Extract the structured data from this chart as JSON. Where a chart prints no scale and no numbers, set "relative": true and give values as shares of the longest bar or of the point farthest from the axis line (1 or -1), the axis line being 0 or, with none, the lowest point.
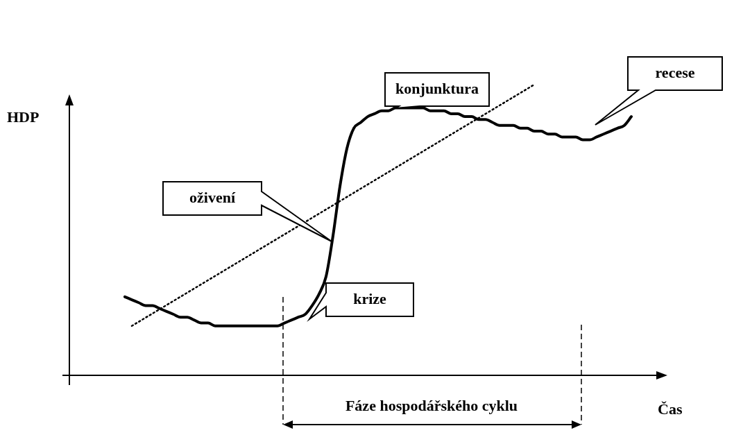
{
  "chart_data": {
    "type": "line",
    "relative": true,
    "ylabel": "HDP",
    "xlabel": "Čas",
    "marker": "none",
    "categories": [
      null,
      null,
      null,
      null,
      null,
      null,
      null,
      null,
      null,
      null,
      null,
      null,
      null,
      null,
      null,
      null,
      null,
      null,
      null,
      null,
      null,
      null,
      null,
      null,
      null,
      null,
      null,
      null,
      null,
      null,
      null,
      null,
      null,
      null,
      null,
      null,
      null,
      null,
      null,
      null,
      null,
      null,
      null,
      null,
      null,
      null,
      null,
      null,
      null,
      null,
      null,
      null,
      null,
      null,
      null,
      null,
      null,
      null,
      null,
      null,
      null,
      null,
      null,
      null,
      null,
      null,
      null,
      null,
      null,
      null,
      null,
      null,
      null,
      null,
      null,
      null,
      null,
      null,
      null,
      null,
      null,
      null,
      null,
      null,
      null,
      null,
      null
    ],
    "series": [
      {
        "color": "#000000",
        "line_style": "solid",
        "values": [
          null,
          null,
          null,
          null,
          null,
          null,
          null,
          null,
          0.27,
          0.26,
          0.25,
          0.24,
          0.24,
          0.23,
          0.22,
          0.21,
          0.2,
          0.2,
          0.19,
          0.18,
          0.18,
          0.17,
          0.17,
          0.17,
          0.17,
          0.17,
          0.17,
          0.17,
          0.17,
          0.17,
          0.17,
          0.18,
          0.19,
          0.2,
          0.21,
          0.24,
          0.28,
          0.34,
          0.48,
          0.65,
          0.78,
          0.85,
          0.87,
          0.89,
          0.9,
          0.91,
          0.91,
          0.92,
          0.92,
          0.92,
          0.92,
          0.92,
          0.91,
          0.91,
          0.91,
          0.9,
          0.9,
          0.89,
          0.89,
          0.88,
          0.88,
          0.87,
          0.86,
          0.86,
          0.86,
          0.85,
          0.85,
          0.84,
          0.84,
          0.83,
          0.83,
          0.82,
          0.82,
          0.82,
          0.81,
          0.81,
          0.82,
          0.83,
          0.84,
          0.85,
          0.86,
          0.89,
          null,
          null,
          null,
          null,
          null
        ]
      },
      {
        "type": "line",
        "color": "#000000",
        "line_style": "dotted",
        "values": [
          null,
          null,
          null,
          null,
          null,
          null,
          null,
          null,
          null,
          0.17,
          null,
          null,
          null,
          null,
          null,
          null,
          null,
          null,
          null,
          null,
          null,
          null,
          null,
          null,
          null,
          null,
          null,
          null,
          null,
          null,
          null,
          null,
          null,
          null,
          null,
          null,
          null,
          null,
          null,
          null,
          null,
          null,
          null,
          null,
          null,
          null,
          null,
          null,
          null,
          null,
          null,
          null,
          null,
          null,
          null,
          null,
          null,
          null,
          null,
          null,
          null,
          null,
          null,
          null,
          null,
          null,
          null,
          1.0,
          null,
          null,
          null,
          null,
          null,
          null,
          null,
          null,
          null,
          null,
          null,
          null,
          null,
          null,
          null,
          null,
          null,
          null,
          null
        ]
      }
    ],
    "annotations": [
      "konjunktura",
      "recese",
      "oživení",
      "krize",
      "Fáze hospodářského cyklu"
    ]
  }
}
